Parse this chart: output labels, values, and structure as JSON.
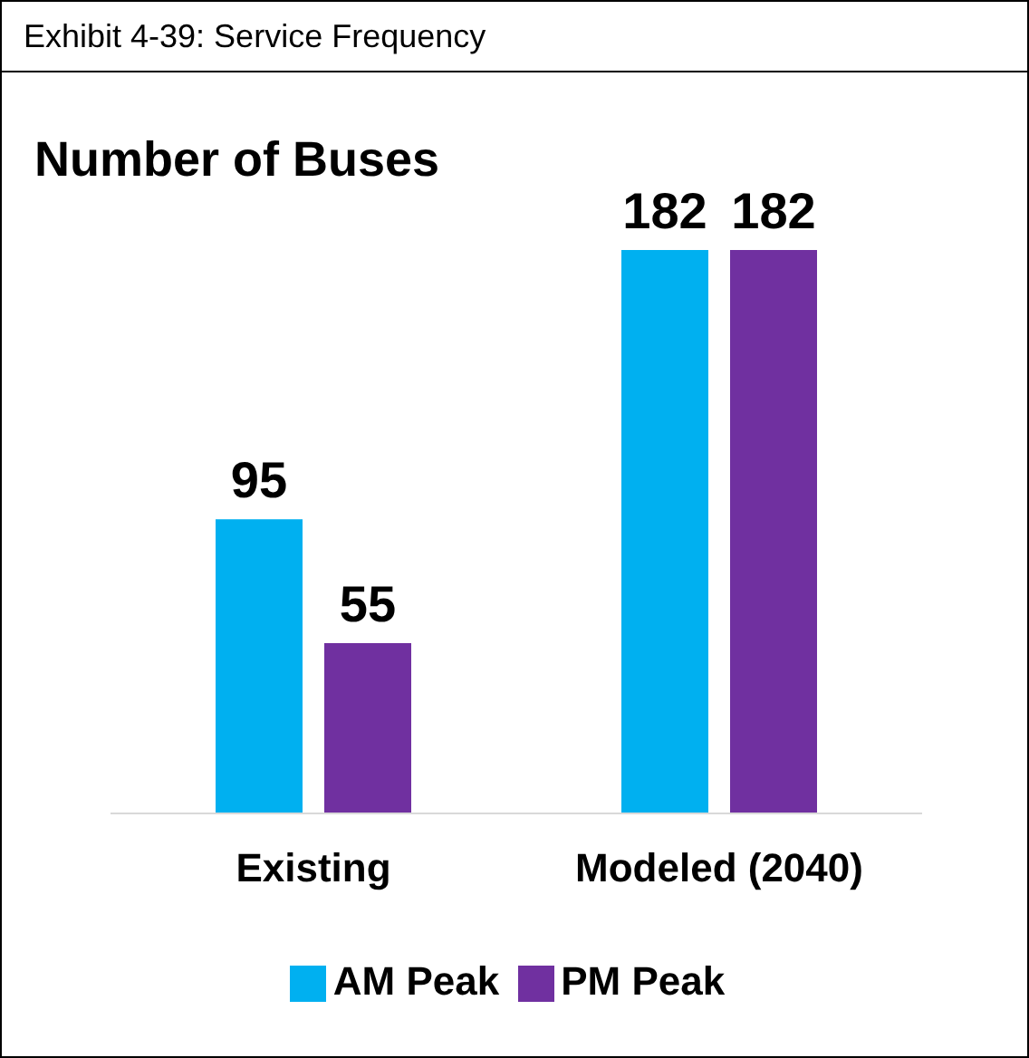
{
  "chart_data": {
    "type": "bar",
    "title": "Exhibit 4-39:  Service Frequency",
    "subtitle": "Number of Buses",
    "categories": [
      "Existing",
      "Modeled (2040)"
    ],
    "series": [
      {
        "name": "AM Peak",
        "color": "#00b0f0",
        "values": [
          95,
          182
        ]
      },
      {
        "name": "PM Peak",
        "color": "#7030a0",
        "values": [
          55,
          182
        ]
      }
    ],
    "data_labels": true,
    "legend": "bottom",
    "grid": false
  }
}
